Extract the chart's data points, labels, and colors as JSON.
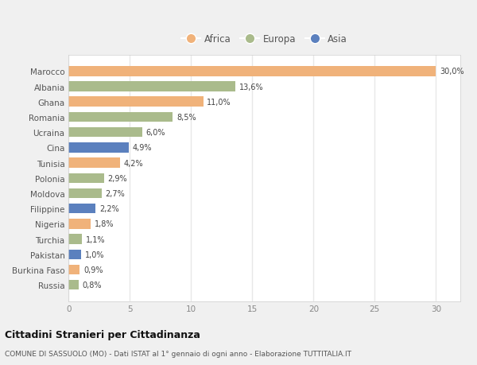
{
  "countries": [
    "Marocco",
    "Albania",
    "Ghana",
    "Romania",
    "Ucraina",
    "Cina",
    "Tunisia",
    "Polonia",
    "Moldova",
    "Filippine",
    "Nigeria",
    "Turchia",
    "Pakistan",
    "Burkina Faso",
    "Russia"
  ],
  "values": [
    30.0,
    13.6,
    11.0,
    8.5,
    6.0,
    4.9,
    4.2,
    2.9,
    2.7,
    2.2,
    1.8,
    1.1,
    1.0,
    0.9,
    0.8
  ],
  "labels": [
    "30,0%",
    "13,6%",
    "11,0%",
    "8,5%",
    "6,0%",
    "4,9%",
    "4,2%",
    "2,9%",
    "2,7%",
    "2,2%",
    "1,8%",
    "1,1%",
    "1,0%",
    "0,9%",
    "0,8%"
  ],
  "continents": [
    "Africa",
    "Europa",
    "Africa",
    "Europa",
    "Europa",
    "Asia",
    "Africa",
    "Europa",
    "Europa",
    "Asia",
    "Africa",
    "Europa",
    "Asia",
    "Africa",
    "Europa"
  ],
  "colors": {
    "Africa": "#F0B27A",
    "Europa": "#AABB8C",
    "Asia": "#5B80BE"
  },
  "legend_labels": [
    "Africa",
    "Europa",
    "Asia"
  ],
  "legend_colors": [
    "#F0B27A",
    "#AABB8C",
    "#5B80BE"
  ],
  "xlim": [
    0,
    32
  ],
  "xticks": [
    0,
    5,
    10,
    15,
    20,
    25,
    30
  ],
  "title": "Cittadini Stranieri per Cittadinanza",
  "subtitle": "COMUNE DI SASSUOLO (MO) - Dati ISTAT al 1° gennaio di ogni anno - Elaborazione TUTTITALIA.IT",
  "figure_bg": "#f0f0f0",
  "plot_bg": "#ffffff",
  "grid_color": "#e8e8e8",
  "bar_height": 0.65
}
